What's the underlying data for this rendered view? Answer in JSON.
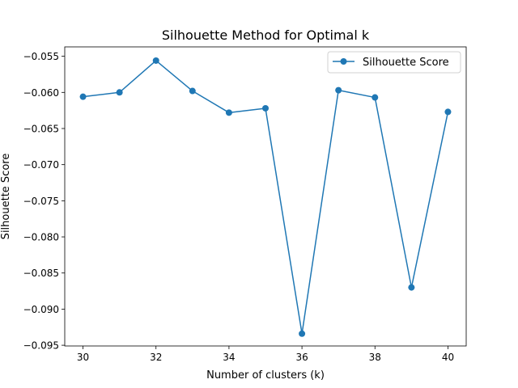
{
  "chart_data": {
    "type": "line",
    "title": "Silhouette Method for Optimal k",
    "xlabel": "Number of clusters (k)",
    "ylabel": "Silhouette Score",
    "x": [
      30,
      31,
      32,
      33,
      34,
      35,
      36,
      37,
      38,
      39,
      40
    ],
    "series": [
      {
        "name": "Silhouette Score",
        "color": "#1f77b4",
        "marker": "circle",
        "values": [
          -0.0606,
          -0.06,
          -0.0556,
          -0.0598,
          -0.0628,
          -0.0622,
          -0.0934,
          -0.0597,
          -0.0607,
          -0.087,
          -0.0627
        ]
      }
    ],
    "xlim": [
      29.5,
      40.5
    ],
    "ylim": [
      -0.0951,
      -0.0537
    ],
    "xticks": [
      30,
      32,
      34,
      36,
      38,
      40
    ],
    "yticks": [
      -0.055,
      -0.06,
      -0.065,
      -0.07,
      -0.075,
      -0.08,
      -0.085,
      -0.09,
      -0.095
    ],
    "ytick_labels": [
      "−0.055",
      "−0.060",
      "−0.065",
      "−0.070",
      "−0.075",
      "−0.080",
      "−0.085",
      "−0.090",
      "−0.095"
    ],
    "grid": false,
    "legend_position": "upper right"
  }
}
